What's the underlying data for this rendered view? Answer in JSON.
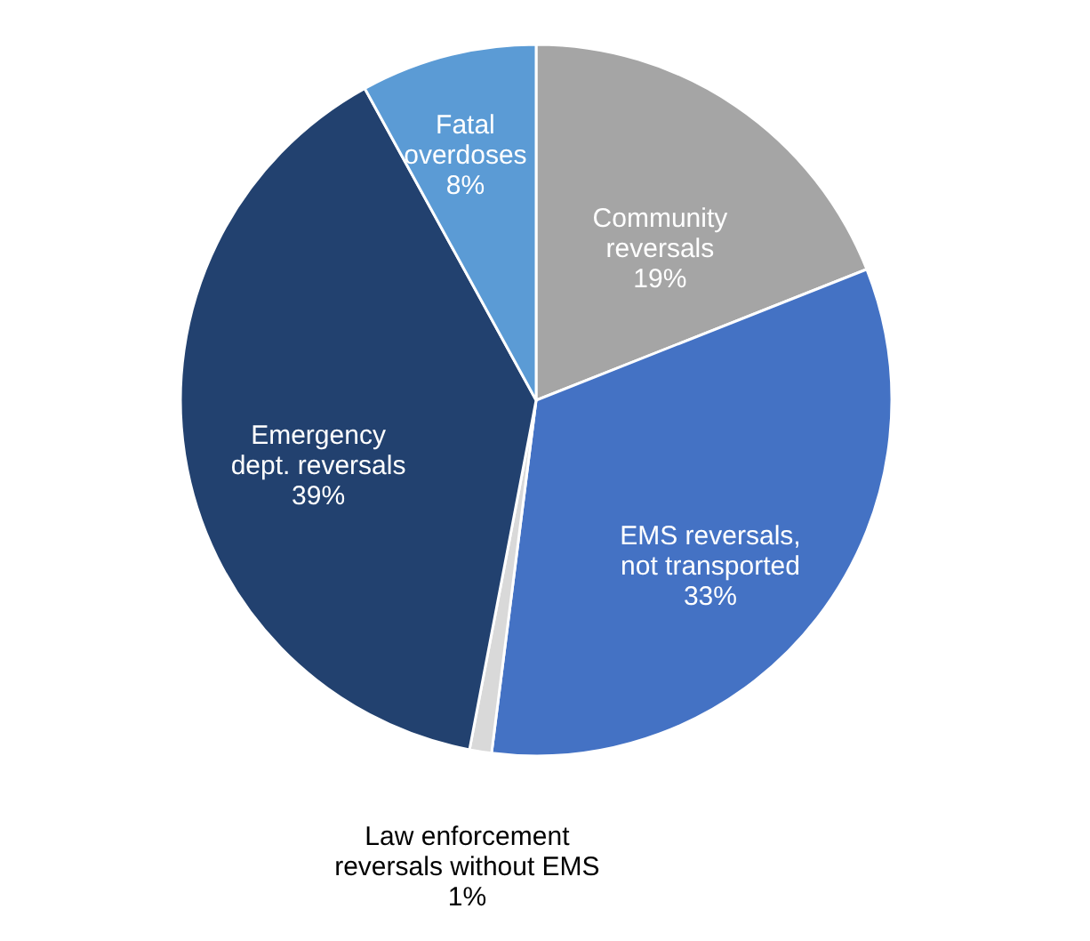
{
  "chart_data": {
    "type": "pie",
    "categories": [
      "Community\nreversals",
      "EMS reversals,\nnot transported",
      "Law enforcement\nreversals without EMS",
      "Emergency\ndept. reversals",
      "Fatal\noverdoses"
    ],
    "values": [
      19,
      33,
      1,
      39,
      8
    ],
    "colors": [
      "#a5a5a5",
      "#4472c4",
      "#d9d9d9",
      "#22416f",
      "#5b9bd5"
    ],
    "value_labels": [
      "19%",
      "33%",
      "1%",
      "39%",
      "8%"
    ],
    "legend": false
  }
}
